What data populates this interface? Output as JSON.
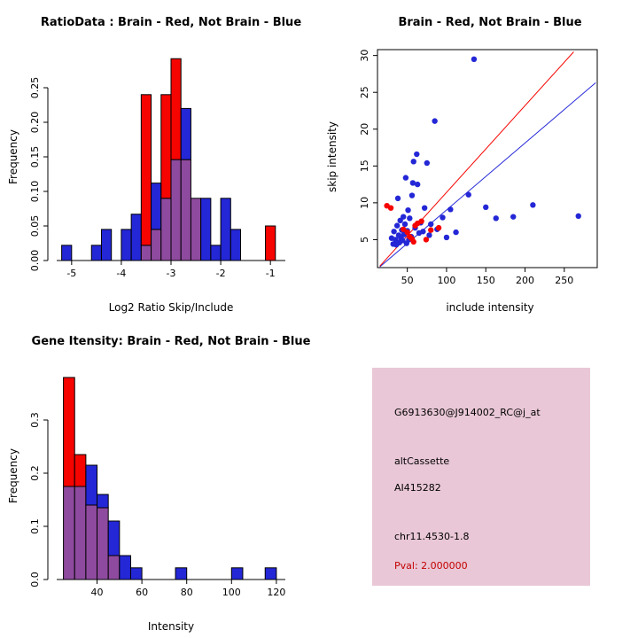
{
  "colors": {
    "red": "#F50400",
    "blue": "#2427D6",
    "overlap": "#8E4A9E",
    "info_bg": "#E9C7D6",
    "pval_text": "#C40000",
    "axis": "#000000",
    "background": "#FFFFFF"
  },
  "chart_data": [
    {
      "type": "histogram-overlay",
      "title": "RatioData : Brain - Red, Not Brain - Blue",
      "xlabel": "Log2 Ratio Skip/Include",
      "ylabel": "Frequency",
      "legend": "Brain = red, Not Brain = blue, overlap = purple",
      "xlim": [
        -5.3,
        -0.7
      ],
      "ylim": [
        0,
        0.3
      ],
      "bin_width": 0.2,
      "xticks": [
        -5,
        -4,
        -3,
        -2,
        -1
      ],
      "xtick_labels": [
        "-5",
        "-4",
        "-3",
        "-2",
        "-1"
      ],
      "yticks": [
        0,
        0.05,
        0.1,
        0.15,
        0.2,
        0.25
      ],
      "ytick_labels": [
        "0.00",
        "0.05",
        "0.10",
        "0.15",
        "0.20",
        "0.25"
      ],
      "grid": false,
      "bars": [
        {
          "x0": -5.2,
          "red": 0,
          "blue": 0.022
        },
        {
          "x0": -4.6,
          "red": 0,
          "blue": 0.022
        },
        {
          "x0": -4.4,
          "red": 0,
          "blue": 0.045
        },
        {
          "x0": -4.0,
          "red": 0,
          "blue": 0.045
        },
        {
          "x0": -3.8,
          "red": 0,
          "blue": 0.067
        },
        {
          "x0": -3.6,
          "red": 0.24,
          "blue": 0.022
        },
        {
          "x0": -3.4,
          "red": 0.045,
          "blue": 0.112
        },
        {
          "x0": -3.2,
          "red": 0.24,
          "blue": 0.09
        },
        {
          "x0": -3.0,
          "red": 0.292,
          "blue": 0.146
        },
        {
          "x0": -2.8,
          "red": 0.146,
          "blue": 0.22
        },
        {
          "x0": -2.6,
          "red": 0.09,
          "blue": 0.09
        },
        {
          "x0": -2.4,
          "red": 0,
          "blue": 0.09
        },
        {
          "x0": -2.2,
          "red": 0,
          "blue": 0.022
        },
        {
          "x0": -2.0,
          "red": 0,
          "blue": 0.09
        },
        {
          "x0": -1.8,
          "red": 0,
          "blue": 0.045
        },
        {
          "x0": -1.1,
          "red": 0.05,
          "blue": 0
        }
      ]
    },
    {
      "type": "scatter",
      "title": "Brain - Red, Not Brain - Blue",
      "xlabel": "include intensity",
      "ylabel": "skip intensity",
      "xlim": [
        12,
        292
      ],
      "ylim": [
        1.2,
        30.8
      ],
      "xticks": [
        50,
        100,
        150,
        200,
        250
      ],
      "xtick_labels": [
        "50",
        "100",
        "150",
        "200",
        "250"
      ],
      "yticks": [
        5,
        10,
        15,
        20,
        25,
        30
      ],
      "ytick_labels": [
        "5",
        "10",
        "15",
        "20",
        "25",
        "30"
      ],
      "grid": false,
      "blue_points": [
        [
          30,
          5.2
        ],
        [
          32,
          4.4
        ],
        [
          33,
          6.1
        ],
        [
          35,
          5.0
        ],
        [
          36,
          4.3
        ],
        [
          37,
          6.9
        ],
        [
          38,
          10.6
        ],
        [
          39,
          5.6
        ],
        [
          40,
          4.6
        ],
        [
          41,
          7.6
        ],
        [
          42,
          5.2
        ],
        [
          43,
          6.3
        ],
        [
          44,
          4.9
        ],
        [
          45,
          8.1
        ],
        [
          46,
          5.7
        ],
        [
          47,
          7.1
        ],
        [
          48,
          13.4
        ],
        [
          49,
          4.5
        ],
        [
          50,
          6.2
        ],
        [
          51,
          9.0
        ],
        [
          52,
          5.0
        ],
        [
          53,
          7.9
        ],
        [
          55,
          5.4
        ],
        [
          56,
          11.0
        ],
        [
          57,
          12.7
        ],
        [
          58,
          15.6
        ],
        [
          60,
          6.6
        ],
        [
          62,
          16.6
        ],
        [
          63,
          12.5
        ],
        [
          65,
          5.9
        ],
        [
          67,
          7.3
        ],
        [
          70,
          6.1
        ],
        [
          72,
          9.3
        ],
        [
          75,
          15.4
        ],
        [
          78,
          5.6
        ],
        [
          80,
          7.1
        ],
        [
          85,
          21.1
        ],
        [
          88,
          6.4
        ],
        [
          95,
          8.0
        ],
        [
          100,
          5.3
        ],
        [
          105,
          9.1
        ],
        [
          112,
          6.0
        ],
        [
          128,
          11.1
        ],
        [
          135,
          29.5
        ],
        [
          150,
          9.4
        ],
        [
          163,
          7.9
        ],
        [
          185,
          8.1
        ],
        [
          210,
          9.7
        ],
        [
          268,
          8.2
        ]
      ],
      "red_points": [
        [
          24,
          9.6
        ],
        [
          29,
          9.3
        ],
        [
          45,
          6.4
        ],
        [
          50,
          6.0
        ],
        [
          53,
          5.4
        ],
        [
          56,
          5.1
        ],
        [
          58,
          4.7
        ],
        [
          60,
          6.9
        ],
        [
          63,
          7.2
        ],
        [
          68,
          7.5
        ],
        [
          74,
          5.0
        ],
        [
          80,
          6.3
        ],
        [
          90,
          6.6
        ]
      ],
      "red_line": [
        [
          15,
          1.4
        ],
        [
          262,
          30.5
        ]
      ],
      "blue_line": [
        [
          15,
          1.3
        ],
        [
          290,
          26.3
        ]
      ]
    },
    {
      "type": "histogram-overlay",
      "title": "Gene Itensity: Brain - Red, Not Brain - Blue",
      "xlabel": "Intensity",
      "ylabel": "Frequency",
      "legend": "Brain = red, Not Brain = blue, overlap = purple",
      "xlim": [
        22,
        124
      ],
      "ylim": [
        0,
        0.39
      ],
      "bin_width": 5,
      "xticks": [
        40,
        60,
        80,
        100,
        120
      ],
      "xtick_labels": [
        "40",
        "60",
        "80",
        "100",
        "120"
      ],
      "yticks": [
        0,
        0.1,
        0.2,
        0.3
      ],
      "ytick_labels": [
        "0.0",
        "0.1",
        "0.2",
        "0.3"
      ],
      "grid": false,
      "bars": [
        {
          "x0": 25,
          "red": 0.38,
          "blue": 0.175
        },
        {
          "x0": 30,
          "red": 0.235,
          "blue": 0.175
        },
        {
          "x0": 35,
          "red": 0.14,
          "blue": 0.215
        },
        {
          "x0": 40,
          "red": 0.135,
          "blue": 0.16
        },
        {
          "x0": 45,
          "red": 0.045,
          "blue": 0.11
        },
        {
          "x0": 50,
          "red": 0,
          "blue": 0.045
        },
        {
          "x0": 55,
          "red": 0,
          "blue": 0.022
        },
        {
          "x0": 75,
          "red": 0,
          "blue": 0.022
        },
        {
          "x0": 100,
          "red": 0,
          "blue": 0.022
        },
        {
          "x0": 115,
          "red": 0,
          "blue": 0.022
        }
      ]
    }
  ],
  "info_panel": {
    "probe_id": "G6913630@J914002_RC@j_at",
    "event_type": "altCassette",
    "accession": "AI415282",
    "locus": "chr11.4530-1.8",
    "pval": "Pval: 2.000000"
  }
}
